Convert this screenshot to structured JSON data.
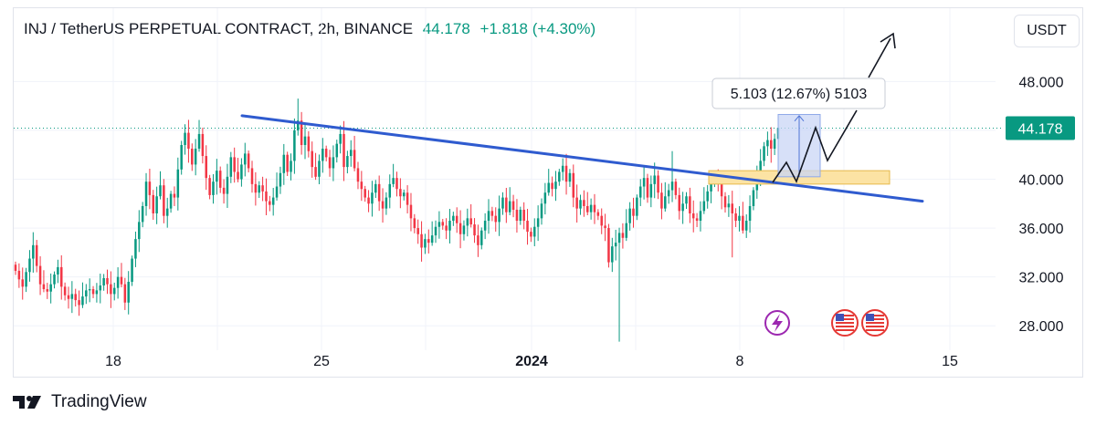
{
  "header": {
    "symbol_line": "INJ / TetherUS PERPETUAL CONTRACT, 2h, BINANCE",
    "price": "44.178",
    "change": "+1.818 (+4.30%)"
  },
  "currency_button": "USDT",
  "last_price_tag": "44.178",
  "measure_label": "5.103 (12.67%) 5103",
  "footer": {
    "brand": "TradingView",
    "logo_icon": "tradingview-logo-icon"
  },
  "event_icons": [
    "lightning-icon",
    "us-flag-icon",
    "us-flag-icon"
  ],
  "colors": {
    "up": "#089981",
    "down": "#f23645",
    "trendline": "#2f5bcf",
    "zone": "#fce3a4",
    "measure": "#c9d6f5"
  },
  "chart_data": {
    "type": "candlestick",
    "yticks": [
      "28.000",
      "32.000",
      "36.000",
      "40.000",
      "44.000",
      "48.000"
    ],
    "xticks": [
      "18",
      "25",
      "2024",
      "8",
      "15"
    ],
    "ylim": [
      26,
      54
    ],
    "grid": true,
    "last_price": 44.178,
    "closes": [
      32.5,
      31.8,
      31.2,
      32.4,
      33.5,
      34.6,
      32.9,
      31.4,
      31.0,
      30.8,
      31.4,
      32.2,
      32.8,
      31.2,
      30.5,
      30.2,
      30.6,
      30.1,
      29.7,
      30.4,
      30.9,
      31.0,
      30.6,
      30.9,
      31.3,
      31.9,
      31.4,
      30.6,
      31.1,
      32.0,
      31.4,
      29.9,
      31.6,
      33.5,
      35.1,
      36.5,
      37.8,
      39.8,
      38.7,
      37.2,
      38.6,
      39.5,
      37.0,
      37.6,
      38.8,
      38.5,
      40.8,
      42.8,
      43.8,
      42.5,
      41.2,
      42.5,
      43.7,
      41.9,
      40.1,
      38.7,
      39.8,
      40.7,
      39.3,
      38.8,
      40.2,
      41.8,
      40.6,
      40.0,
      41.2,
      42.1,
      40.9,
      39.6,
      38.9,
      39.5,
      39.0,
      38.2,
      37.9,
      38.5,
      39.4,
      40.5,
      42.0,
      40.6,
      41.5,
      44.0,
      44.8,
      42.8,
      43.5,
      42.3,
      41.0,
      40.2,
      41.5,
      42.5,
      41.8,
      40.9,
      41.8,
      42.9,
      43.7,
      41.0,
      41.9,
      42.4,
      40.9,
      39.8,
      39.2,
      38.5,
      38.0,
      38.9,
      39.6,
      38.2,
      37.6,
      38.5,
      39.6,
      40.1,
      39.2,
      38.6,
      38.9,
      37.9,
      36.8,
      36.0,
      35.5,
      34.4,
      35.1,
      34.8,
      35.4,
      36.1,
      36.5,
      36.2,
      35.8,
      36.6,
      37.0,
      36.4,
      35.5,
      36.2,
      36.8,
      36.3,
      35.4,
      34.6,
      35.8,
      36.6,
      37.4,
      37.0,
      36.5,
      37.6,
      38.5,
      37.3,
      38.2,
      37.5,
      36.6,
      37.5,
      36.6,
      35.7,
      35.3,
      36.1,
      36.8,
      38.0,
      38.9,
      39.7,
      39.2,
      39.8,
      40.6,
      41.1,
      39.8,
      40.5,
      38.5,
      37.6,
      38.3,
      37.8,
      37.3,
      37.9,
      37.3,
      37.0,
      36.2,
      36.0,
      33.2,
      34.5,
      34.8,
      35.6,
      35.2,
      36.4,
      37.6,
      37.0,
      38.5,
      39.4,
      40.1,
      38.5,
      39.6,
      40.3,
      38.9,
      37.6,
      38.6,
      39.1,
      39.8,
      38.7,
      37.4,
      38.0,
      38.6,
      37.2,
      36.8,
      36.6,
      37.4,
      38.2,
      39.0,
      39.7,
      40.2,
      39.7,
      38.6,
      37.7,
      38.0,
      37.2,
      36.6,
      37.0,
      35.8,
      36.6,
      37.8,
      39.1,
      40.5,
      41.5,
      42.7,
      43.2,
      42.5,
      43.3,
      44.2
    ]
  }
}
